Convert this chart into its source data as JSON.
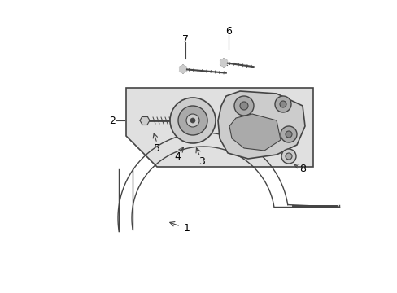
{
  "bg_color": "#ffffff",
  "line_color": "#444444",
  "box_fill": "#e0e0e0",
  "part_fill": "#cccccc",
  "part_dark": "#aaaaaa",
  "part_darker": "#888888"
}
